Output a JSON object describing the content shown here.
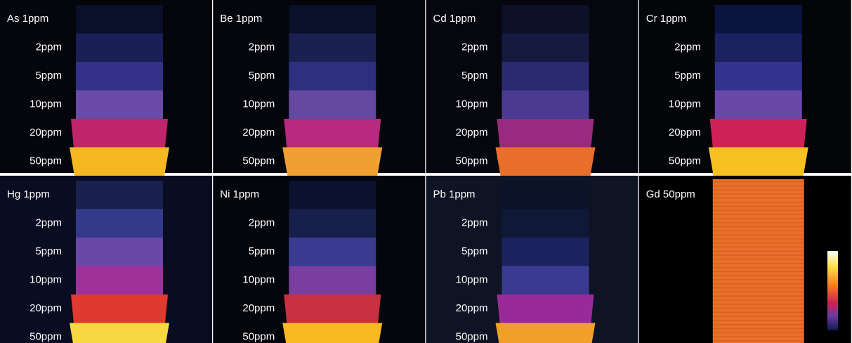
{
  "panels": [
    {
      "labels": [
        "As 1ppm",
        "2ppm",
        "5ppm",
        "10ppm",
        "20ppm",
        "50ppm"
      ],
      "background": "#05060c",
      "bands": [
        "#0a0f2a",
        "#1a1f55",
        "#33308a",
        "#6a4aa8",
        "#c0246a",
        "#f5b820"
      ]
    },
    {
      "labels": [
        "Be 1ppm",
        "2ppm",
        "5ppm",
        "10ppm",
        "20ppm",
        "50ppm"
      ],
      "background": "#05060c",
      "bands": [
        "#0a0f2a",
        "#1a2050",
        "#2e2f80",
        "#6548a0",
        "#b82a80",
        "#f0a030"
      ]
    },
    {
      "labels": [
        "Cd 1ppm",
        "2ppm",
        "5ppm",
        "10ppm",
        "20ppm",
        "50ppm"
      ],
      "background": "#06070e",
      "bands": [
        "#0c1028",
        "#161a40",
        "#2a2a70",
        "#4a3a90",
        "#9a2a80",
        "#e8702a"
      ]
    },
    {
      "labels": [
        "Cr 1ppm",
        "2ppm",
        "5ppm",
        "10ppm",
        "20ppm",
        "50ppm"
      ],
      "background": "#040508",
      "bands": [
        "#0c1440",
        "#1c2260",
        "#34348e",
        "#6a48a8",
        "#d0205a",
        "#f8c020"
      ]
    },
    {
      "labels": [
        "Hg 1ppm",
        "2ppm",
        "5ppm",
        "10ppm",
        "20ppm",
        "50ppm"
      ],
      "background": "#0a0c22",
      "bands": [
        "#1a2050",
        "#343a8a",
        "#6a48a8",
        "#a0309a",
        "#e03a30",
        "#f8d840"
      ]
    },
    {
      "labels": [
        "Ni 1ppm",
        "2ppm",
        "5ppm",
        "10ppm",
        "20ppm",
        "50ppm"
      ],
      "background": "#05060c",
      "bands": [
        "#0a1230",
        "#16204a",
        "#3a3a90",
        "#7a3ea0",
        "#c83040",
        "#f8b820"
      ]
    },
    {
      "labels": [
        "Pb 1ppm",
        "2ppm",
        "5ppm",
        "10ppm",
        "20ppm",
        "50ppm"
      ],
      "background": "#0e1424",
      "bands": [
        "#0c1228",
        "#101838",
        "#1c2260",
        "#3a3a90",
        "#9a2a98",
        "#f0a028"
      ]
    },
    {
      "labels": [
        "Gd 50ppm"
      ],
      "background": "#000000",
      "bands": [
        "#e8702a"
      ]
    }
  ]
}
